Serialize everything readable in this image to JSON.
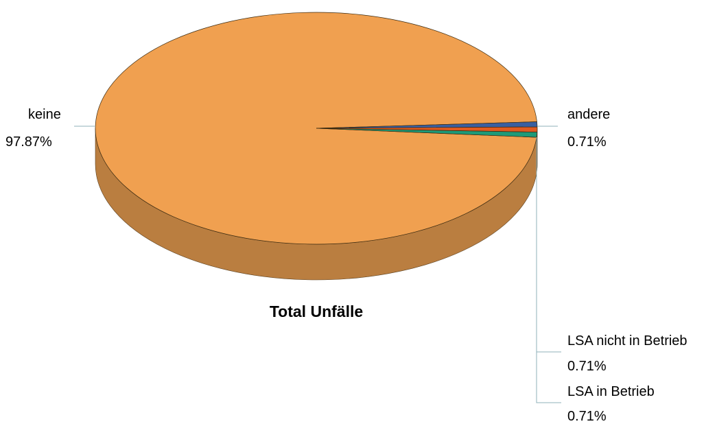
{
  "chart_data": {
    "type": "pie",
    "title": "Total Unfälle",
    "slices": [
      {
        "label": "keine",
        "value": 97.87,
        "value_label": "97.87%",
        "color": "#F0A050",
        "side_color": "#BA7E40"
      },
      {
        "label": "andere",
        "value": 0.71,
        "value_label": "0.71%",
        "color": "#3A5FA0",
        "side_color": "#2A4880"
      },
      {
        "label": "LSA nicht in Betrieb",
        "value": 0.71,
        "value_label": "0.71%",
        "color": "#E05A20",
        "side_color": "#B04818"
      },
      {
        "label": "LSA in Betrieb",
        "value": 0.71,
        "value_label": "0.71%",
        "color": "#1E9A78",
        "side_color": "#167A5E"
      }
    ],
    "style": "3d-pie",
    "legend": "none (labels beside slices)"
  }
}
